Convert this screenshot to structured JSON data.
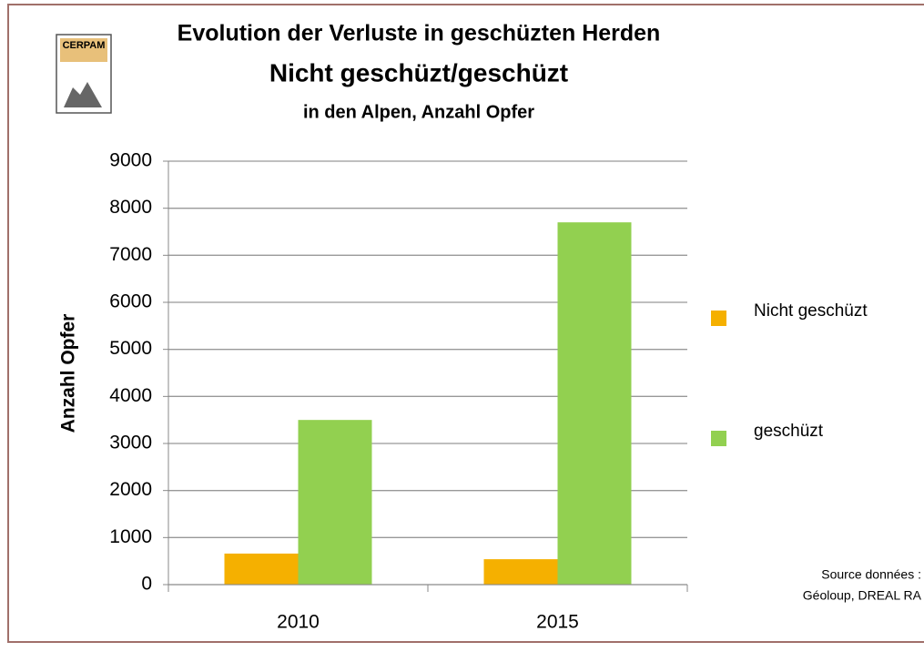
{
  "chart_data": {
    "type": "bar",
    "logo": "CERPAM",
    "title": "Evolution der Verluste in geschüzten Herden",
    "subtitle": "Nicht geschüzt/geschüzt",
    "subtitle2": "in den Alpen, Anzahl Opfer",
    "y_label": "Anzahl Opfer",
    "categories": [
      "2010",
      "2015"
    ],
    "series": [
      {
        "name": "Nicht geschüzt",
        "color": "#f5b000",
        "values": [
          660,
          540
        ]
      },
      {
        "name": "geschüzt",
        "color": "#92d050",
        "values": [
          3500,
          7700
        ]
      }
    ],
    "ylim": [
      0,
      9000
    ],
    "yticks": [
      0,
      1000,
      2000,
      3000,
      4000,
      5000,
      6000,
      7000,
      8000,
      9000
    ],
    "grid": true,
    "legend": "right",
    "annotations": [
      "Source données :",
      "Géoloup, DREAL RA"
    ]
  }
}
